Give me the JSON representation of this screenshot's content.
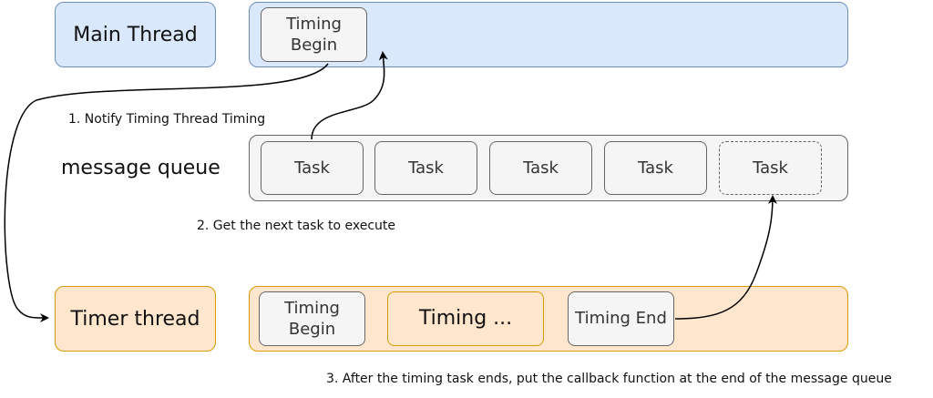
{
  "main_thread": {
    "label": "Main Thread",
    "node_timing_begin": "Timing\nBegin"
  },
  "queue": {
    "label": "message queue",
    "tasks": [
      "Task",
      "Task",
      "Task",
      "Task",
      "Task"
    ]
  },
  "timer_thread": {
    "label": "Timer thread",
    "node_timing_begin": "Timing\nBegin",
    "node_timing_running": "Timing ...",
    "node_timing_end": "Timing End"
  },
  "notes": {
    "step1": "1. Notify Timing Thread Timing",
    "step2": "2. Get the next task to execute",
    "step3": "3. After the timing task ends, put the callback function at the end of the message queue"
  },
  "colors": {
    "blue_fill": "#dae8fc",
    "blue_stroke": "#6c8ebf",
    "orange_fill": "#ffe6cc",
    "orange_stroke": "#d79b00",
    "gray_fill": "#f5f5f5",
    "gray_stroke": "#666666"
  }
}
